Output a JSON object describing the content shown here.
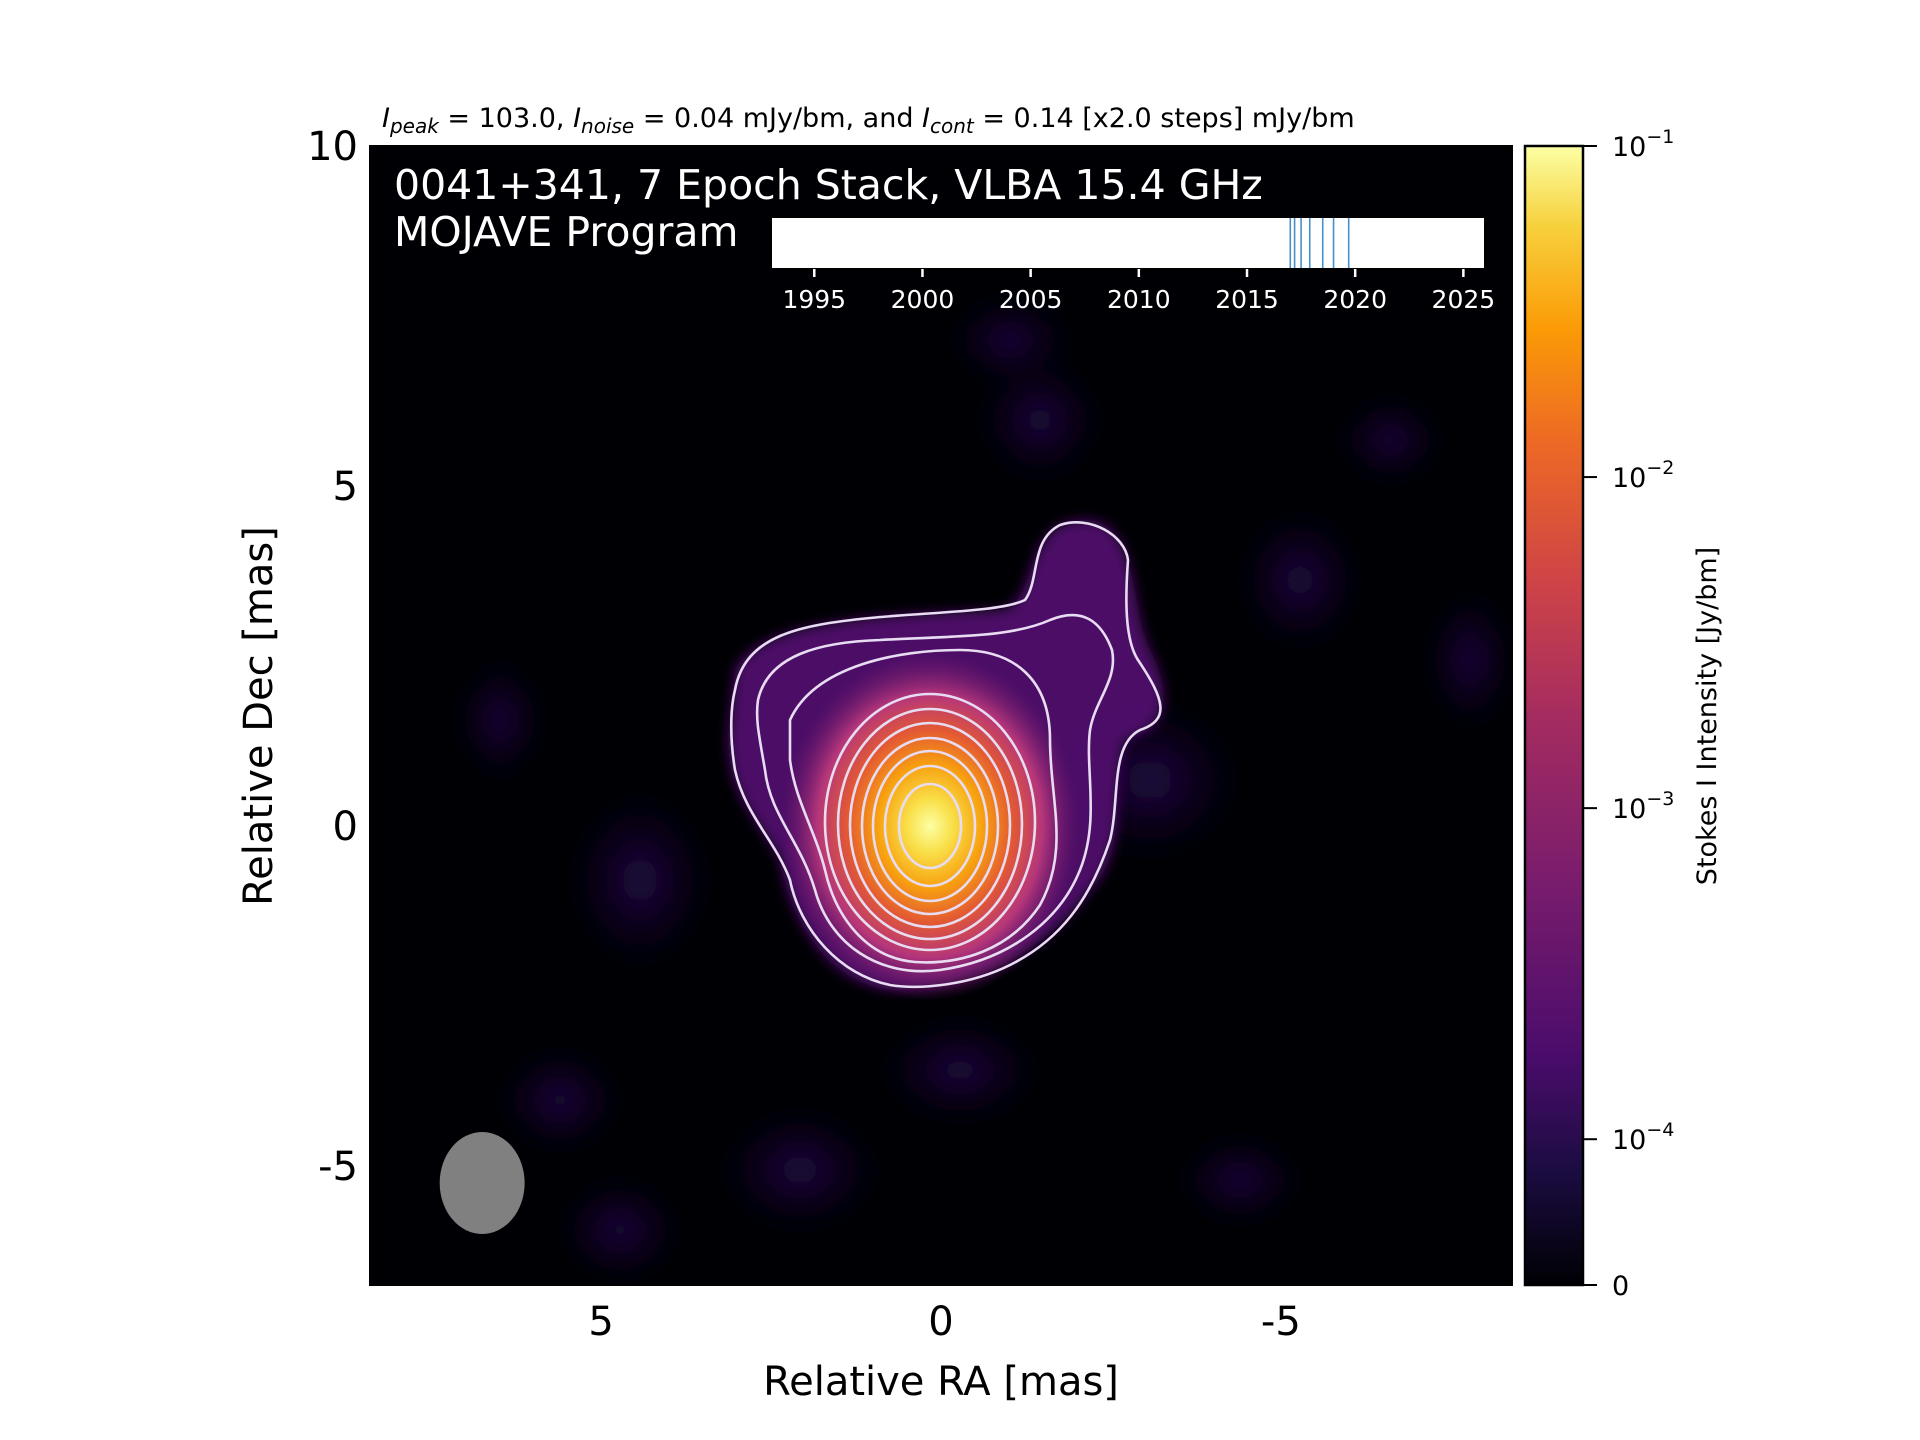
{
  "figure": {
    "header_parts": [
      {
        "text": "I",
        "italic": true
      },
      {
        "text": "peak",
        "sub": true
      },
      {
        "text": " = 103.0, "
      },
      {
        "text": "I",
        "italic": true
      },
      {
        "text": "noise",
        "sub": true
      },
      {
        "text": " = 0.04 mJy/bm, and "
      },
      {
        "text": "I",
        "italic": true
      },
      {
        "text": "cont",
        "sub": true
      },
      {
        "text": " = 0.14 [x2.0 steps] mJy/bm"
      }
    ],
    "overlay_title_line1": "0041+341, 7 Epoch Stack, VLBA 15.4 GHz",
    "overlay_title_line2": "MOJAVE Program"
  },
  "chart_data": [
    {
      "type": "heatmap",
      "xlabel": "Relative RA [mas]",
      "ylabel": "Relative Dec [mas]",
      "xlim": [
        8.4,
        -8.4
      ],
      "ylim": [
        -6.75,
        10
      ],
      "x_inverted": true,
      "x_ticks": [
        5,
        0,
        -5
      ],
      "x_tick_labels": [
        "5",
        "0",
        "-5"
      ],
      "y_ticks": [
        10,
        5,
        0,
        -5
      ],
      "y_tick_labels": [
        "10",
        "5",
        "0",
        "-5"
      ],
      "colormap": "inferno",
      "background_color": "#000004",
      "contour_color": "#e6d9f0",
      "contour_levels_count": 10,
      "peak_position": [
        0,
        0
      ],
      "beam": {
        "center": [
          6.75,
          -5.25
        ],
        "width_mas": 1.25,
        "height_mas": 1.5,
        "color": "#808080"
      },
      "colorbar": {
        "label": "Stokes I Intensity [Jy/bm]",
        "scale": "log",
        "tick_labels": [
          {
            "value": 0.1,
            "base": "10",
            "exp": "−1"
          },
          {
            "value": 0.01,
            "base": "10",
            "exp": "−2"
          },
          {
            "value": 0.001,
            "base": "10",
            "exp": "−3"
          },
          {
            "value": 0.0001,
            "base": "10",
            "exp": "−4"
          },
          {
            "value": 0,
            "base": "0",
            "exp": ""
          }
        ]
      }
    },
    {
      "type": "timeline",
      "x_range": [
        1993,
        2026
      ],
      "x_ticks": [
        1995,
        2000,
        2005,
        2010,
        2015,
        2020,
        2025
      ],
      "x_tick_labels": [
        "1995",
        "2000",
        "2005",
        "2010",
        "2015",
        "2020",
        "2025"
      ],
      "epochs": [
        2017.0,
        2017.2,
        2017.5,
        2017.9,
        2018.5,
        2019.0,
        2019.7
      ],
      "epoch_color": "#4a90c8"
    }
  ]
}
